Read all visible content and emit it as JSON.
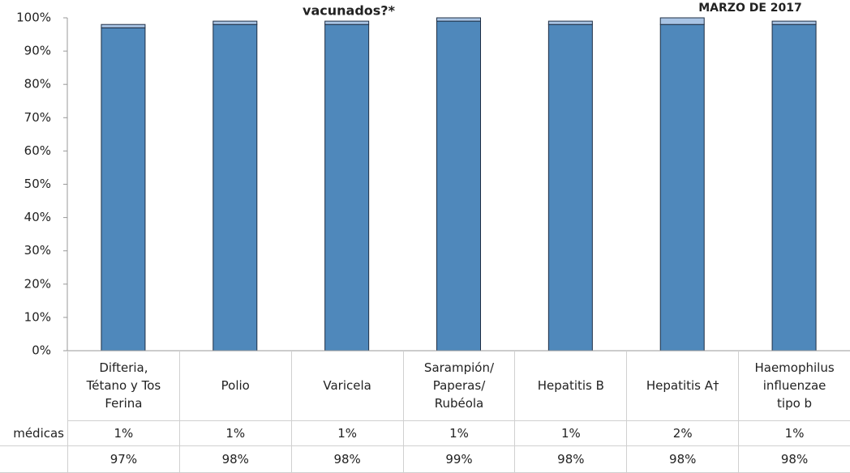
{
  "chart_data": {
    "type": "bar",
    "stacked": true,
    "title": "vacunados?*",
    "subtitle": "MARZO DE 2017",
    "categories": [
      "Difteria,\nTétano y Tos\nFerina",
      "Polio",
      "Varicela",
      "Sarampión/\nPaperas/\nRubéola",
      "Hepatitis B",
      "Hepatitis A†",
      "Haemophilus\ninfluenzae\ntipo b"
    ],
    "series": [
      {
        "color": "#4f88bb",
        "values": [
          97,
          98,
          98,
          99,
          98,
          98,
          98
        ],
        "value_labels": [
          "97%",
          "98%",
          "98%",
          "99%",
          "98%",
          "98%",
          "98%"
        ]
      },
      {
        "name": "médicas",
        "color": "#a9c4e4",
        "values": [
          1,
          1,
          1,
          1,
          1,
          2,
          1
        ],
        "value_labels": [
          "1%",
          "1%",
          "1%",
          "1%",
          "1%",
          "2%",
          "1%"
        ]
      }
    ],
    "ylim": [
      0,
      100
    ],
    "yticks": [
      {
        "value": 0,
        "label": "0%"
      },
      {
        "value": 10,
        "label": "10%"
      },
      {
        "value": 20,
        "label": "20%"
      },
      {
        "value": 30,
        "label": "30%"
      },
      {
        "value": 40,
        "label": "40%"
      },
      {
        "value": 50,
        "label": "50%"
      },
      {
        "value": 60,
        "label": "60%"
      },
      {
        "value": 70,
        "label": "70%"
      },
      {
        "value": 80,
        "label": "80%"
      },
      {
        "value": 90,
        "label": "90%"
      },
      {
        "value": 100,
        "label": "100%"
      }
    ]
  }
}
